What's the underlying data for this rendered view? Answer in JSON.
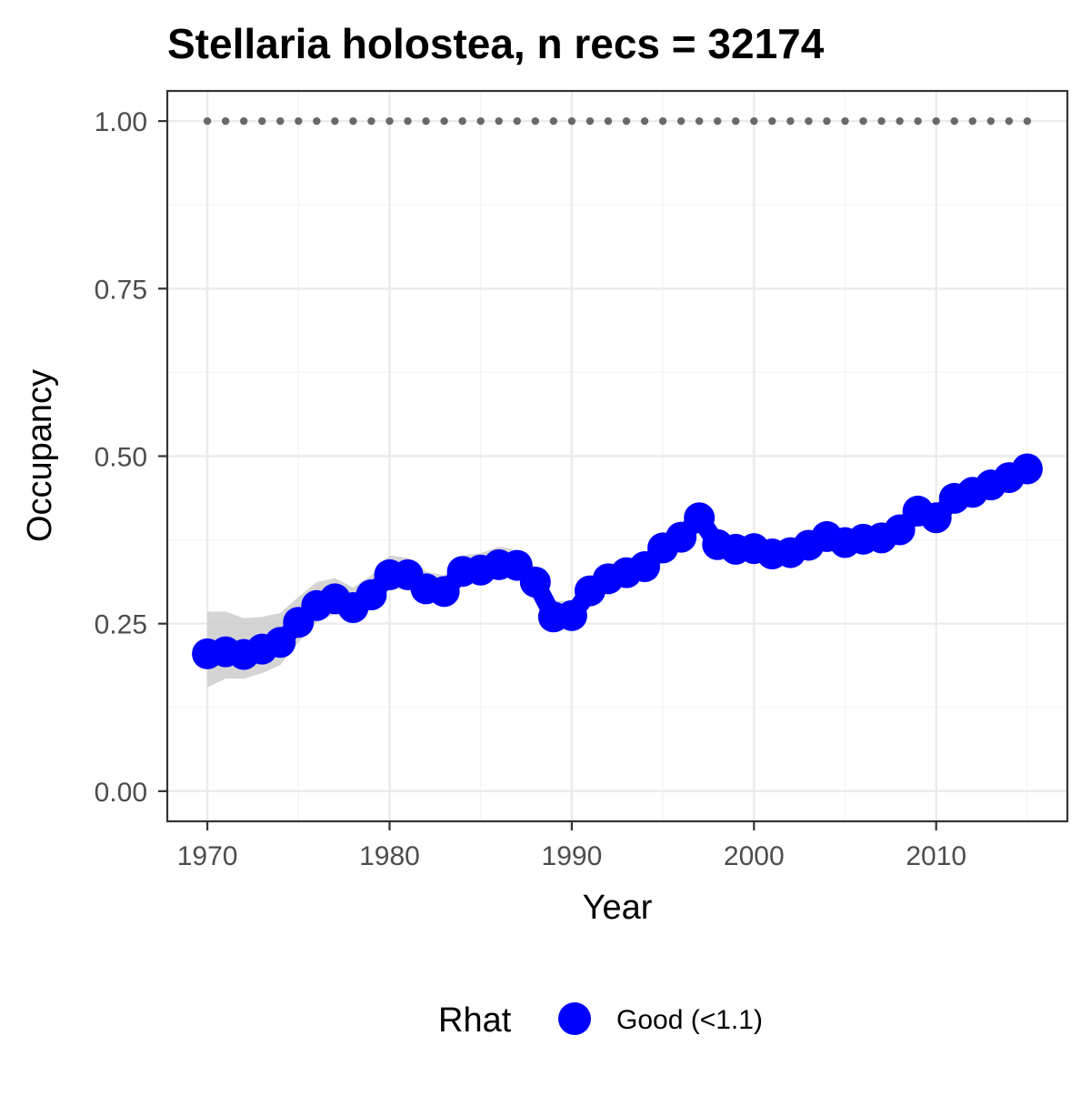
{
  "chart_data": {
    "type": "line",
    "title": "Stellaria holostea, n recs = 32174",
    "xlabel": "Year",
    "ylabel": "Occupancy",
    "xlim": [
      1967.8,
      2017.2
    ],
    "ylim": [
      -0.045,
      1.045
    ],
    "x_ticks": [
      1970,
      1980,
      1990,
      2000,
      2010
    ],
    "x_tick_labels": [
      "1970",
      "1980",
      "1990",
      "2000",
      "2010"
    ],
    "y_ticks": [
      0,
      0.25,
      0.5,
      0.75,
      1.0
    ],
    "y_tick_labels": [
      "0.00",
      "0.25",
      "0.50",
      "0.75",
      "1.00"
    ],
    "grid": true,
    "legend": {
      "title": "Rhat",
      "position": "bottom",
      "entries": [
        {
          "label": "Good (<1.1)",
          "color": "#0000ff"
        }
      ]
    },
    "colors": {
      "series": "#0000ff",
      "ribbon": "#cccccc",
      "reference": "#696969"
    },
    "series": [
      {
        "x": [
          1970,
          1971,
          1972,
          1973,
          1974,
          1975,
          1976,
          1977,
          1978,
          1979,
          1980,
          1981,
          1982,
          1983,
          1984,
          1985,
          1986,
          1987,
          1988,
          1989,
          1990,
          1991,
          1992,
          1993,
          1994,
          1995,
          1996,
          1997,
          1998,
          1999,
          2000,
          2001,
          2002,
          2003,
          2004,
          2005,
          2006,
          2007,
          2008,
          2009,
          2010,
          2011,
          2012,
          2013,
          2014,
          2015
        ],
        "values": [
          0.205,
          0.208,
          0.204,
          0.212,
          0.222,
          0.252,
          0.277,
          0.287,
          0.274,
          0.293,
          0.323,
          0.323,
          0.302,
          0.298,
          0.328,
          0.33,
          0.338,
          0.337,
          0.312,
          0.26,
          0.262,
          0.299,
          0.317,
          0.326,
          0.335,
          0.363,
          0.379,
          0.408,
          0.368,
          0.361,
          0.362,
          0.354,
          0.356,
          0.367,
          0.38,
          0.371,
          0.376,
          0.378,
          0.39,
          0.418,
          0.408,
          0.437,
          0.446,
          0.457,
          0.468,
          0.481
        ],
        "lower": [
          0.155,
          0.168,
          0.168,
          0.176,
          0.188,
          0.222,
          0.252,
          0.265,
          0.253,
          0.272,
          0.3,
          0.303,
          0.283,
          0.28,
          0.31,
          0.312,
          0.318,
          0.32,
          0.295,
          0.24,
          0.244,
          0.283,
          0.3,
          0.31,
          0.32,
          0.35,
          0.365,
          0.392,
          0.355,
          0.349,
          0.35,
          0.342,
          0.345,
          0.356,
          0.368,
          0.36,
          0.366,
          0.368,
          0.38,
          0.407,
          0.397,
          0.426,
          0.435,
          0.446,
          0.457,
          0.47
        ],
        "upper": [
          0.268,
          0.268,
          0.258,
          0.26,
          0.266,
          0.29,
          0.312,
          0.318,
          0.304,
          0.322,
          0.352,
          0.348,
          0.328,
          0.322,
          0.352,
          0.355,
          0.365,
          0.36,
          0.335,
          0.283,
          0.285,
          0.32,
          0.338,
          0.346,
          0.354,
          0.38,
          0.395,
          0.425,
          0.383,
          0.375,
          0.376,
          0.367,
          0.369,
          0.38,
          0.393,
          0.384,
          0.388,
          0.39,
          0.402,
          0.43,
          0.42,
          0.45,
          0.458,
          0.469,
          0.48,
          0.493
        ]
      }
    ],
    "reference_points": {
      "y": 1.0,
      "x_start": 1970,
      "x_end": 2015,
      "step": 1
    }
  }
}
